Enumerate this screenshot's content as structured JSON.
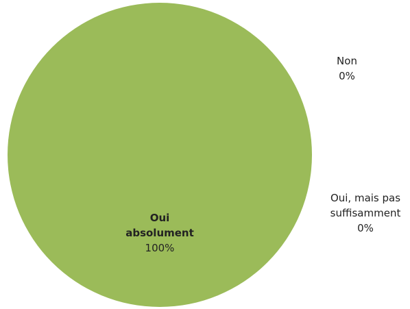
{
  "chart_data": {
    "type": "pie",
    "categories": [
      "Oui absolument",
      "Oui, mais pas suffisamment",
      "Non"
    ],
    "values": [
      100,
      0,
      0
    ],
    "value_labels": [
      "100%",
      "0%",
      "0%"
    ],
    "colors": [
      "#9bbb59",
      "#c0504d",
      "#4f81bd"
    ]
  }
}
